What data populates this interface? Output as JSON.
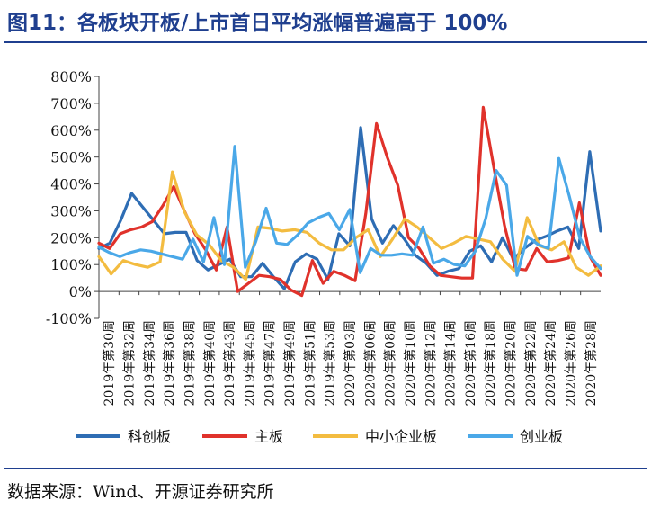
{
  "title": "图11：各板块开板/上市首日平均涨幅普遍高于 100%",
  "source": "数据来源：Wind、开源证券研究所",
  "chart_data": {
    "type": "line",
    "ylim": [
      -100,
      800
    ],
    "yticks": [
      "-100%",
      "0%",
      "100%",
      "200%",
      "300%",
      "400%",
      "500%",
      "600%",
      "700%",
      "800%"
    ],
    "xlabels": [
      "2019年第30周",
      "2019年第32周",
      "2019年第34周",
      "2019年第36周",
      "2019年第38周",
      "2019年第40周",
      "2019年第43周",
      "2019年第45周",
      "2019年第47周",
      "2019年第49周",
      "2019年第51周",
      "2019年第53周",
      "2020年第03周",
      "2020年第06周",
      "2020年第08周",
      "2020年第10周",
      "2020年第12周",
      "2020年第14周",
      "2020年第16周",
      "2020年第18周",
      "2020年第20周",
      "2020年第22周",
      "2020年第24周",
      "2020年第26周",
      "2020年第28周"
    ],
    "legend_position": "bottom",
    "series": [
      {
        "name": "科创板",
        "color": "#2e6db4",
        "values": [
          160,
          180,
          265,
          365,
          315,
          265,
          215,
          220,
          220,
          115,
          80,
          100,
          120,
          55,
          55,
          105,
          55,
          10,
          110,
          140,
          120,
          45,
          215,
          170,
          610,
          270,
          180,
          245,
          195,
          135,
          105,
          60,
          75,
          85,
          150,
          170,
          110,
          200,
          120,
          160,
          190,
          205,
          225,
          240,
          160,
          520,
          225
        ]
      },
      {
        "name": "主板",
        "color": "#e0322b",
        "values": [
          180,
          160,
          215,
          230,
          240,
          260,
          320,
          390,
          300,
          215,
          155,
          80,
          240,
          0,
          30,
          60,
          55,
          45,
          5,
          -15,
          115,
          30,
          75,
          60,
          40,
          290,
          625,
          500,
          395,
          200,
          160,
          95,
          60,
          55,
          50,
          50,
          685,
          460,
          245,
          85,
          80,
          160,
          110,
          115,
          125,
          330,
          130,
          60
        ]
      },
      {
        "name": "中小企业板",
        "color": "#f3bc40",
        "values": [
          130,
          65,
          115,
          100,
          90,
          110,
          445,
          295,
          210,
          175,
          115,
          90,
          45,
          240,
          235,
          225,
          230,
          220,
          180,
          155,
          155,
          200,
          230,
          130,
          195,
          270,
          240,
          200,
          160,
          180,
          205,
          195,
          185,
          120,
          75,
          275,
          170,
          155,
          185,
          90,
          60,
          95
        ]
      },
      {
        "name": "创业板",
        "color": "#4aa8e8",
        "values": [
          165,
          145,
          130,
          145,
          155,
          150,
          140,
          130,
          120,
          195,
          110,
          275,
          100,
          540,
          90,
          185,
          310,
          180,
          175,
          210,
          255,
          275,
          290,
          230,
          305,
          70,
          160,
          135,
          135,
          140,
          135,
          240,
          105,
          120,
          100,
          95,
          150,
          270,
          450,
          395,
          60,
          205,
          175,
          160,
          495,
          355,
          200,
          130,
          85
        ]
      }
    ]
  },
  "legend": [
    {
      "label": "科创板",
      "color": "#2e6db4"
    },
    {
      "label": "主板",
      "color": "#e0322b"
    },
    {
      "label": "中小企业板",
      "color": "#f3bc40"
    },
    {
      "label": "创业板",
      "color": "#4aa8e8"
    }
  ]
}
